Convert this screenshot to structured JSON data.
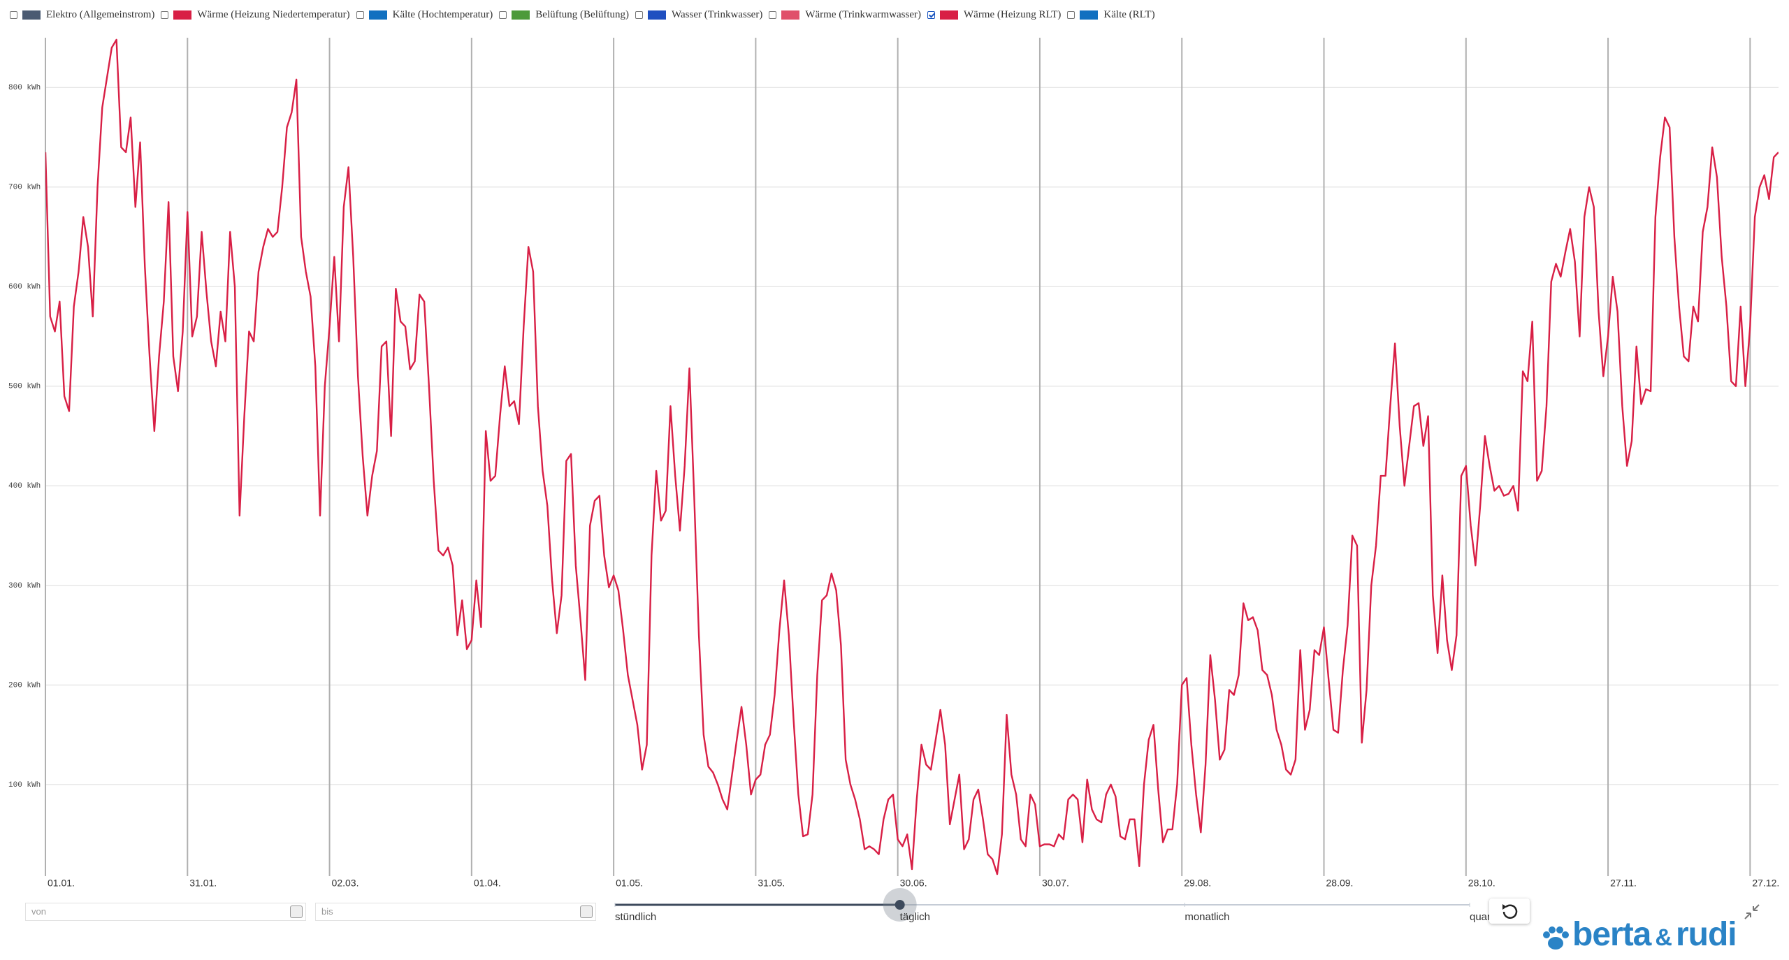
{
  "chart_data": {
    "type": "line",
    "legend": [
      {
        "name": "Elektro (Allgemeinstrom)",
        "color": "#4a5a72",
        "checked": false
      },
      {
        "name": "Wärme (Heizung Niedertemperatur)",
        "color": "#d81f45",
        "checked": false
      },
      {
        "name": "Kälte (Hochtemperatur)",
        "color": "#1170c0",
        "checked": false
      },
      {
        "name": "Belüftung (Belüftung)",
        "color": "#4c9a3a",
        "checked": false
      },
      {
        "name": "Wasser (Trinkwasser)",
        "color": "#1f4fc0",
        "checked": false
      },
      {
        "name": "Wärme (Trinkwarmwasser)",
        "color": "#e0506a",
        "checked": false
      },
      {
        "name": "Wärme (Heizung RLT)",
        "color": "#d81f45",
        "checked": true
      },
      {
        "name": "Kälte (RLT)",
        "color": "#1170c0",
        "checked": false
      }
    ],
    "color": "#d81f45",
    "grid": true,
    "xlim": [
      0,
      366
    ],
    "ylim": [
      8,
      850
    ],
    "xticks": [
      {
        "value": 0,
        "label": "01.01."
      },
      {
        "value": 30,
        "label": "31.01."
      },
      {
        "value": 60,
        "label": "02.03."
      },
      {
        "value": 90,
        "label": "01.04."
      },
      {
        "value": 120,
        "label": "01.05."
      },
      {
        "value": 150,
        "label": "31.05."
      },
      {
        "value": 180,
        "label": "30.06."
      },
      {
        "value": 210,
        "label": "30.07."
      },
      {
        "value": 240,
        "label": "29.08."
      },
      {
        "value": 270,
        "label": "28.09."
      },
      {
        "value": 300,
        "label": "28.10."
      },
      {
        "value": 330,
        "label": "27.11."
      },
      {
        "value": 360,
        "label": "27.12."
      }
    ],
    "yticks": [
      {
        "value": 100,
        "label": "100 kWh"
      },
      {
        "value": 200,
        "label": "200 kWh"
      },
      {
        "value": 300,
        "label": "300 kWh"
      },
      {
        "value": 400,
        "label": "400 kWh"
      },
      {
        "value": 500,
        "label": "500 kWh"
      },
      {
        "value": 600,
        "label": "600 kWh"
      },
      {
        "value": 700,
        "label": "700 kWh"
      },
      {
        "value": 800,
        "label": "800 kWh"
      }
    ],
    "x": [
      0,
      1,
      2,
      3,
      4,
      5,
      6,
      7,
      8,
      9,
      10,
      11,
      12,
      13,
      14,
      15,
      16,
      17,
      18,
      19,
      20,
      21,
      22,
      23,
      24,
      25,
      26,
      27,
      28,
      29,
      30,
      31,
      32,
      33,
      34,
      35,
      36,
      37,
      38,
      39,
      40,
      41,
      42,
      43,
      44,
      45,
      46,
      47,
      48,
      49,
      50,
      51,
      52,
      53,
      54,
      55,
      56,
      57,
      58,
      59,
      60,
      61,
      62,
      63,
      64,
      65,
      66,
      67,
      68,
      69,
      70,
      71,
      72,
      73,
      74,
      75,
      76,
      77,
      78,
      79,
      80,
      81,
      82,
      83,
      84,
      85,
      86,
      87,
      88,
      89,
      90,
      91,
      92,
      93,
      94,
      95,
      96,
      97,
      98,
      99,
      100,
      101,
      102,
      103,
      104,
      105,
      106,
      107,
      108,
      109,
      110,
      111,
      112,
      113,
      114,
      115,
      116,
      117,
      118,
      119,
      120,
      121,
      122,
      123,
      124,
      125,
      126,
      127,
      128,
      129,
      130,
      131,
      132,
      133,
      134,
      135,
      136,
      137,
      138,
      139,
      140,
      141,
      142,
      143,
      144,
      145,
      146,
      147,
      148,
      149,
      150,
      151,
      152,
      153,
      154,
      155,
      156,
      157,
      158,
      159,
      160,
      161,
      162,
      163,
      164,
      165,
      166,
      167,
      168,
      169,
      170,
      171,
      172,
      173,
      174,
      175,
      176,
      177,
      178,
      179,
      180,
      181,
      182,
      183,
      184,
      185,
      186,
      187,
      188,
      189,
      190,
      191,
      192,
      193,
      194,
      195,
      196,
      197,
      198,
      199,
      200,
      201,
      202,
      203,
      204,
      205,
      206,
      207,
      208,
      209,
      210,
      211,
      212,
      213,
      214,
      215,
      216,
      217,
      218,
      219,
      220,
      221,
      222,
      223,
      224,
      225,
      226,
      227,
      228,
      229,
      230,
      231,
      232,
      233,
      234,
      235,
      236,
      237,
      238,
      239,
      240,
      241,
      242,
      243,
      244,
      245,
      246,
      247,
      248,
      249,
      250,
      251,
      252,
      253,
      254,
      255,
      256,
      257,
      258,
      259,
      260,
      261,
      262,
      263,
      264,
      265,
      266,
      267,
      268,
      269,
      270,
      271,
      272,
      273,
      274,
      275,
      276,
      277,
      278,
      279,
      280,
      281,
      282,
      283,
      284,
      285,
      286,
      287,
      288,
      289,
      290,
      291,
      292,
      293,
      294,
      295,
      296,
      297,
      298,
      299,
      300,
      301,
      302,
      303,
      304,
      305,
      306,
      307,
      308,
      309,
      310,
      311,
      312,
      313,
      314,
      315,
      316,
      317,
      318,
      319,
      320,
      321,
      322,
      323,
      324,
      325,
      326,
      327,
      328,
      329,
      330,
      331,
      332,
      333,
      334,
      335,
      336,
      337,
      338,
      339,
      340,
      341,
      342,
      343,
      344,
      345,
      346,
      347,
      348,
      349,
      350,
      351,
      352,
      353,
      354,
      355,
      356,
      357,
      358,
      359,
      360,
      361,
      362,
      363,
      364,
      365,
      366
    ],
    "values": [
      735,
      570,
      555,
      585,
      490,
      475,
      580,
      615,
      670,
      640,
      570,
      700,
      780,
      810,
      840,
      848,
      740,
      735,
      770,
      680,
      745,
      620,
      530,
      455,
      530,
      585,
      685,
      530,
      495,
      555,
      675,
      550,
      570,
      655,
      595,
      545,
      520,
      575,
      545,
      655,
      600,
      370,
      470,
      555,
      545,
      615,
      640,
      658,
      650,
      655,
      700,
      760,
      775,
      808,
      650,
      615,
      590,
      520,
      370,
      500,
      560,
      630,
      545,
      680,
      720,
      630,
      510,
      430,
      370,
      410,
      435,
      540,
      545,
      450,
      598,
      565,
      560,
      517,
      525,
      592,
      585,
      500,
      405,
      335,
      330,
      338,
      320,
      250,
      285,
      236,
      245,
      305,
      258,
      455,
      405,
      410,
      470,
      520,
      480,
      485,
      462,
      560,
      640,
      615,
      480,
      415,
      380,
      305,
      252,
      290,
      425,
      432,
      320,
      265,
      205,
      360,
      385,
      390,
      330,
      298,
      310,
      295,
      255,
      210,
      185,
      160,
      115,
      140,
      330,
      415,
      365,
      375,
      480,
      410,
      355,
      420,
      518,
      390,
      250,
      150,
      118,
      112,
      100,
      85,
      75,
      110,
      145,
      178,
      140,
      90,
      105,
      110,
      140,
      150,
      190,
      255,
      305,
      250,
      165,
      90,
      48,
      50,
      90,
      210,
      285,
      290,
      312,
      295,
      240,
      125,
      100,
      85,
      65,
      35,
      38,
      35,
      30,
      65,
      85,
      90,
      45,
      38,
      50,
      15,
      85,
      140,
      120,
      115,
      145,
      175,
      140,
      60,
      85,
      110,
      35,
      45,
      85,
      95,
      65,
      30,
      25,
      10,
      50,
      170,
      110,
      90,
      45,
      38,
      90,
      80,
      38,
      40,
      40,
      38,
      50,
      45,
      85,
      90,
      85,
      42,
      105,
      75,
      65,
      62,
      90,
      100,
      88,
      48,
      45,
      65,
      65,
      18,
      100,
      145,
      160,
      95,
      42,
      55,
      55,
      100,
      200,
      207,
      140,
      90,
      52,
      120,
      230,
      185,
      125,
      135,
      195,
      190,
      210,
      282,
      265,
      268,
      255,
      215,
      210,
      190,
      155,
      140,
      115,
      110,
      125,
      235,
      155,
      175,
      235,
      230,
      258,
      205,
      155,
      152,
      215,
      260,
      350,
      340,
      142,
      195,
      300,
      340,
      410,
      410,
      480,
      543,
      460,
      400,
      440,
      480,
      483,
      440,
      470,
      290,
      232,
      310,
      245,
      215,
      250,
      410,
      420,
      360,
      320,
      380,
      450,
      420,
      395,
      400,
      390,
      392,
      400,
      375,
      515,
      505,
      565,
      405,
      415,
      480,
      605,
      623,
      610,
      635,
      658,
      625,
      550,
      670,
      700,
      680,
      575,
      510,
      550,
      610,
      575,
      480,
      420,
      445,
      540,
      482,
      497,
      495,
      670,
      730,
      770,
      760,
      650,
      580,
      530,
      525,
      580,
      565,
      655,
      680,
      740,
      710,
      630,
      580,
      505,
      500,
      580,
      500,
      560,
      670,
      700,
      712,
      688,
      730,
      735
    ]
  },
  "controls": {
    "from_placeholder": "von",
    "to_placeholder": "bis",
    "resolution_options": [
      "stündlich",
      "täglich",
      "monatlich",
      "quar"
    ],
    "selected_resolution": 1
  },
  "logo": {
    "word1": "berta",
    "amp": "&",
    "word2": "rudi"
  }
}
